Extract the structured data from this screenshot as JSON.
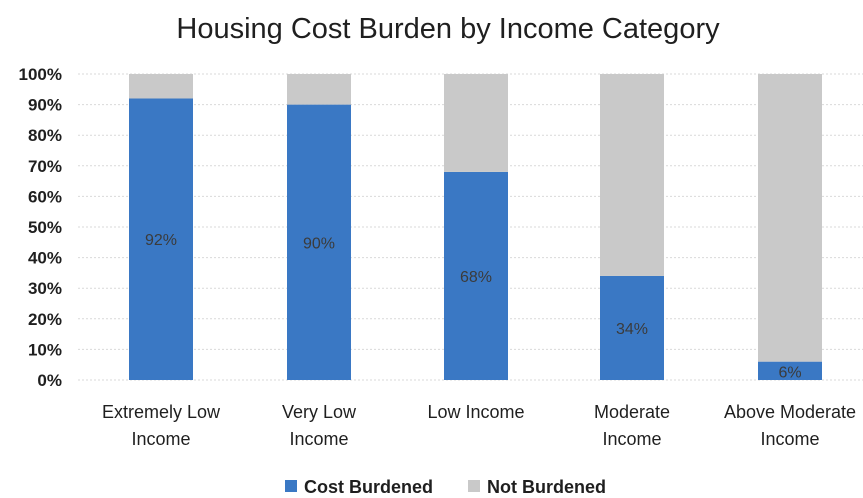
{
  "chart_data": {
    "type": "bar",
    "stacked": true,
    "percent": true,
    "title": "Housing Cost Burden by Income Category",
    "xlabel": "",
    "ylabel": "",
    "ylim": [
      0,
      100
    ],
    "yticks": [
      "0%",
      "10%",
      "20%",
      "30%",
      "40%",
      "50%",
      "60%",
      "70%",
      "80%",
      "90%",
      "100%"
    ],
    "categories": [
      [
        "Extremely Low",
        "Income"
      ],
      [
        "Very Low",
        "Income"
      ],
      [
        "Low Income"
      ],
      [
        "Moderate",
        "Income"
      ],
      [
        "Above Moderate",
        "Income"
      ]
    ],
    "series": [
      {
        "name": "Cost Burdened",
        "color": "#3a78c4",
        "values": [
          92,
          90,
          68,
          34,
          6
        ],
        "labels": [
          "92%",
          "90%",
          "68%",
          "34%",
          "6%"
        ]
      },
      {
        "name": "Not Burdened",
        "color": "#c9c9c9",
        "values": [
          8,
          10,
          32,
          66,
          94
        ]
      }
    ],
    "legend_position": "bottom",
    "grid": true
  }
}
